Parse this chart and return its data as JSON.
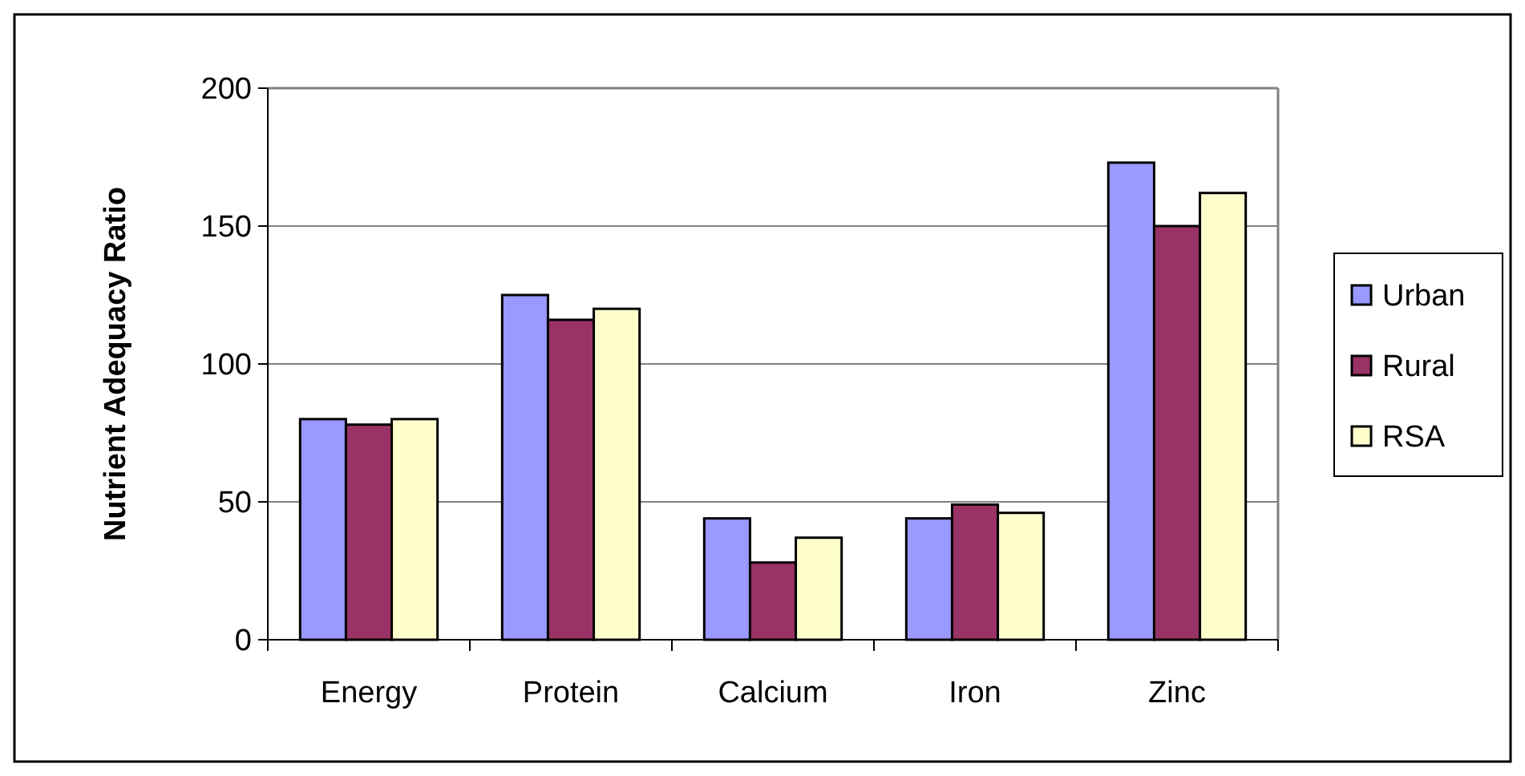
{
  "chart_data": {
    "type": "bar",
    "ylabel": "Nutrient Adequacy Ratio",
    "categories": [
      "Energy",
      "Protein",
      "Calcium",
      "Iron",
      "Zinc"
    ],
    "series": [
      {
        "name": "Urban",
        "color": "#9999ff",
        "values": [
          80,
          125,
          44,
          44,
          173
        ]
      },
      {
        "name": "Rural",
        "color": "#993366",
        "values": [
          78,
          116,
          28,
          49,
          150
        ]
      },
      {
        "name": "RSA",
        "color": "#ffffcc",
        "values": [
          80,
          120,
          37,
          46,
          162
        ]
      }
    ],
    "ylim": [
      0,
      200
    ],
    "yticks": [
      0,
      50,
      100,
      150,
      200
    ],
    "grid": "y",
    "legend": "right"
  }
}
